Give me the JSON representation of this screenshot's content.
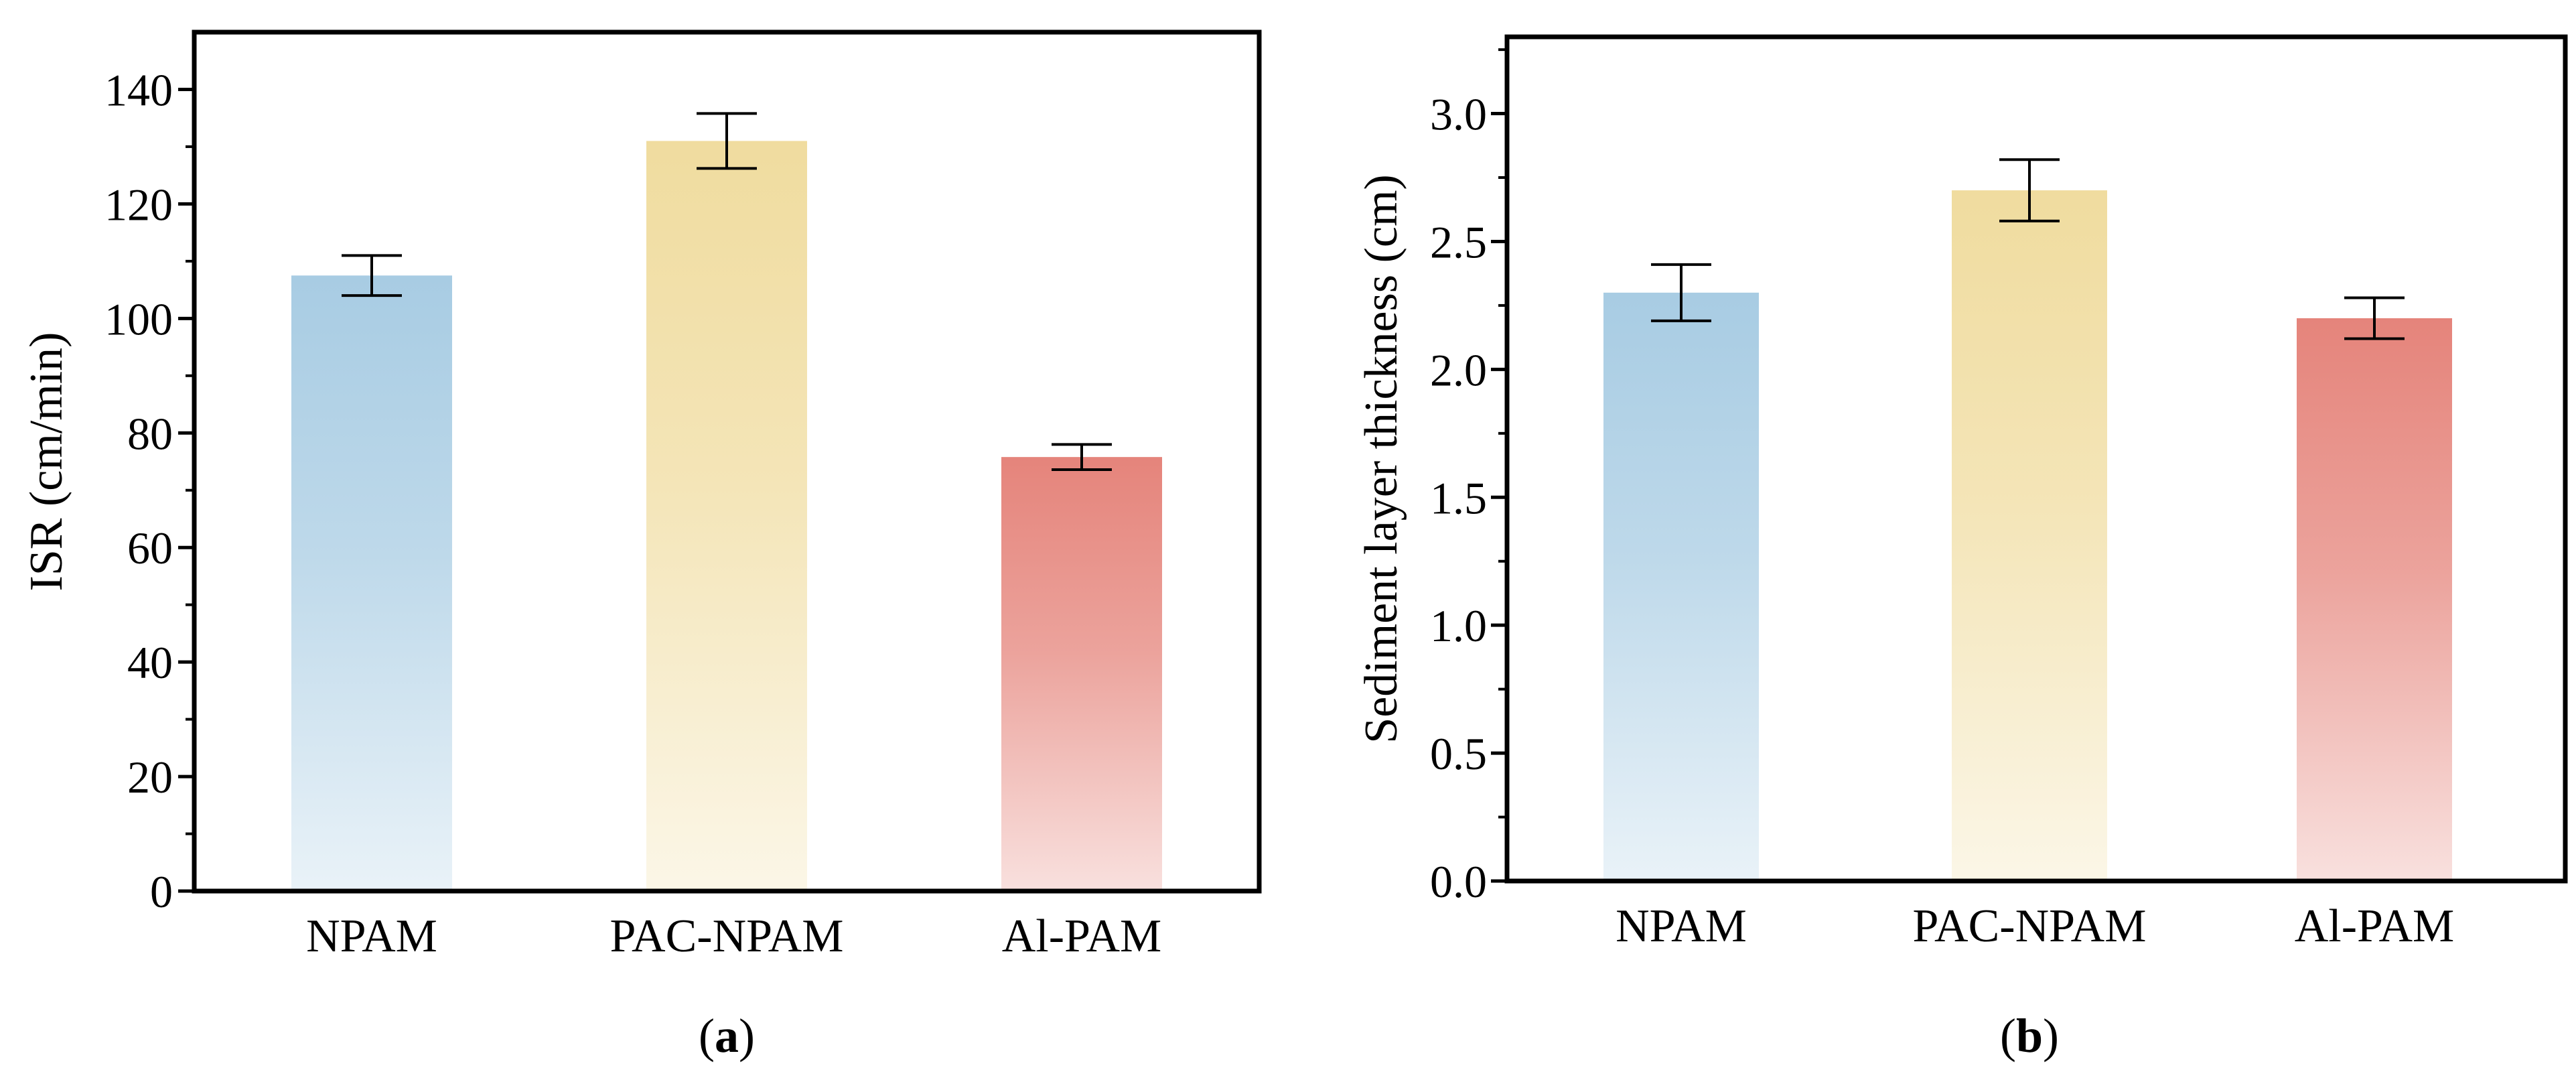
{
  "chart_data": [
    {
      "type": "bar",
      "panel_label": "(a)",
      "panel_letter": "a",
      "categories": [
        "NPAM",
        "PAC-NPAM",
        "Al-PAM"
      ],
      "values": [
        107.5,
        131,
        75.8
      ],
      "errors": [
        3.5,
        4.8,
        2.2
      ],
      "colors": [
        "#a8cce3",
        "#f0dc9f",
        "#e5847b"
      ],
      "ylabel": "ISR (cm/min)",
      "xlabel": "",
      "title": "",
      "ylim": [
        0,
        140
      ],
      "yticks": [
        0,
        20,
        40,
        60,
        80,
        100,
        120,
        140
      ],
      "ytick_labels": [
        "0",
        "20",
        "40",
        "60",
        "80",
        "100",
        "120",
        "140"
      ],
      "ymax": 150,
      "grid": false
    },
    {
      "type": "bar",
      "panel_label": "(b)",
      "panel_letter": "b",
      "categories": [
        "NPAM",
        "PAC-NPAM",
        "Al-PAM"
      ],
      "values": [
        2.3,
        2.7,
        2.2
      ],
      "errors": [
        0.11,
        0.12,
        0.08
      ],
      "colors": [
        "#a8cce3",
        "#f0dc9f",
        "#e5847b"
      ],
      "ylabel": "Sediment layer thickness (cm)",
      "xlabel": "",
      "title": "",
      "ylim": [
        0,
        3.0
      ],
      "yticks": [
        0,
        0.5,
        1.0,
        1.5,
        2.0,
        2.5,
        3.0
      ],
      "ytick_labels": [
        "0.0",
        "0.5",
        "1.0",
        "1.5",
        "2.0",
        "2.5",
        "3.0"
      ],
      "ymax": 3.3,
      "grid": false
    }
  ]
}
